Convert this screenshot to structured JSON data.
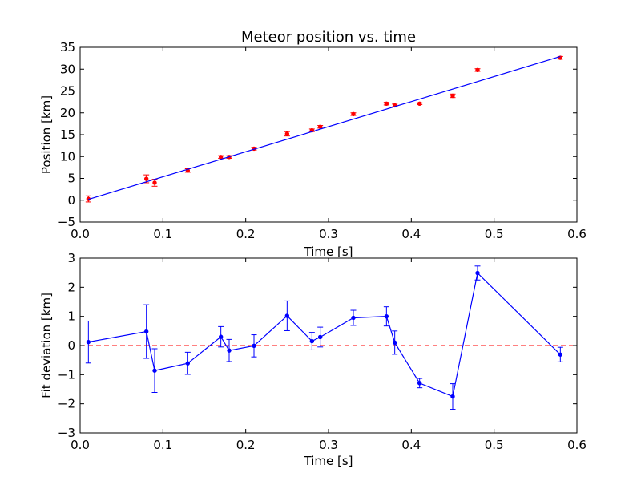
{
  "chart_data": [
    {
      "type": "scatter",
      "title": "Meteor position vs. time",
      "xlabel": "Time [s]",
      "ylabel": "Position [km]",
      "xlim": [
        0.0,
        0.6
      ],
      "ylim": [
        -5,
        35
      ],
      "xticks": [
        "0.0",
        "0.1",
        "0.2",
        "0.3",
        "0.4",
        "0.5",
        "0.6"
      ],
      "yticks": [
        "−5",
        "0",
        "5",
        "10",
        "15",
        "20",
        "25",
        "30",
        "35"
      ],
      "grid": false,
      "series": [
        {
          "kind": "errorbar-points",
          "color": "#ff0000",
          "points": [
            {
              "x": 0.01,
              "y": 0.3,
              "err": 0.7
            },
            {
              "x": 0.08,
              "y": 4.9,
              "err": 0.9
            },
            {
              "x": 0.09,
              "y": 4.0,
              "err": 0.8
            },
            {
              "x": 0.13,
              "y": 6.8,
              "err": 0.4
            },
            {
              "x": 0.17,
              "y": 9.9,
              "err": 0.3
            },
            {
              "x": 0.18,
              "y": 9.9,
              "err": 0.3
            },
            {
              "x": 0.21,
              "y": 11.8,
              "err": 0.3
            },
            {
              "x": 0.25,
              "y": 15.2,
              "err": 0.5
            },
            {
              "x": 0.28,
              "y": 16.0,
              "err": 0.3
            },
            {
              "x": 0.29,
              "y": 16.8,
              "err": 0.3
            },
            {
              "x": 0.33,
              "y": 19.7,
              "err": 0.3
            },
            {
              "x": 0.37,
              "y": 22.1,
              "err": 0.3
            },
            {
              "x": 0.38,
              "y": 21.7,
              "err": 0.3
            },
            {
              "x": 0.41,
              "y": 22.1,
              "err": 0.2
            },
            {
              "x": 0.45,
              "y": 23.9,
              "err": 0.4
            },
            {
              "x": 0.48,
              "y": 29.8,
              "err": 0.3
            },
            {
              "x": 0.58,
              "y": 32.6,
              "err": 0.3
            }
          ]
        },
        {
          "kind": "line",
          "color": "#0000ff",
          "points": [
            {
              "x": 0.01,
              "y": 0.2
            },
            {
              "x": 0.58,
              "y": 32.9
            }
          ]
        }
      ]
    },
    {
      "type": "line",
      "title": "",
      "xlabel": "Time [s]",
      "ylabel": "Fit deviation [km]",
      "xlim": [
        0.0,
        0.6
      ],
      "ylim": [
        -3,
        3
      ],
      "xticks": [
        "0.0",
        "0.1",
        "0.2",
        "0.3",
        "0.4",
        "0.5",
        "0.6"
      ],
      "yticks": [
        "−3",
        "−2",
        "−1",
        "0",
        "1",
        "2",
        "3"
      ],
      "grid": false,
      "reference_line": {
        "y": 0,
        "color": "#ff0000",
        "style": "dashed"
      },
      "series": [
        {
          "kind": "errorbar-line",
          "color": "#0000ff",
          "points": [
            {
              "x": 0.01,
              "y": 0.12,
              "err": 0.72
            },
            {
              "x": 0.08,
              "y": 0.48,
              "err": 0.92
            },
            {
              "x": 0.09,
              "y": -0.86,
              "err": 0.75
            },
            {
              "x": 0.13,
              "y": -0.61,
              "err": 0.38
            },
            {
              "x": 0.17,
              "y": 0.3,
              "err": 0.35
            },
            {
              "x": 0.18,
              "y": -0.17,
              "err": 0.38
            },
            {
              "x": 0.21,
              "y": -0.01,
              "err": 0.38
            },
            {
              "x": 0.25,
              "y": 1.02,
              "err": 0.51
            },
            {
              "x": 0.28,
              "y": 0.15,
              "err": 0.3
            },
            {
              "x": 0.29,
              "y": 0.29,
              "err": 0.34
            },
            {
              "x": 0.33,
              "y": 0.95,
              "err": 0.26
            },
            {
              "x": 0.37,
              "y": 1.0,
              "err": 0.33
            },
            {
              "x": 0.38,
              "y": 0.1,
              "err": 0.4
            },
            {
              "x": 0.41,
              "y": -1.29,
              "err": 0.16
            },
            {
              "x": 0.45,
              "y": -1.75,
              "err": 0.44
            },
            {
              "x": 0.48,
              "y": 2.49,
              "err": 0.24
            },
            {
              "x": 0.58,
              "y": -0.31,
              "err": 0.25
            }
          ]
        }
      ]
    }
  ]
}
